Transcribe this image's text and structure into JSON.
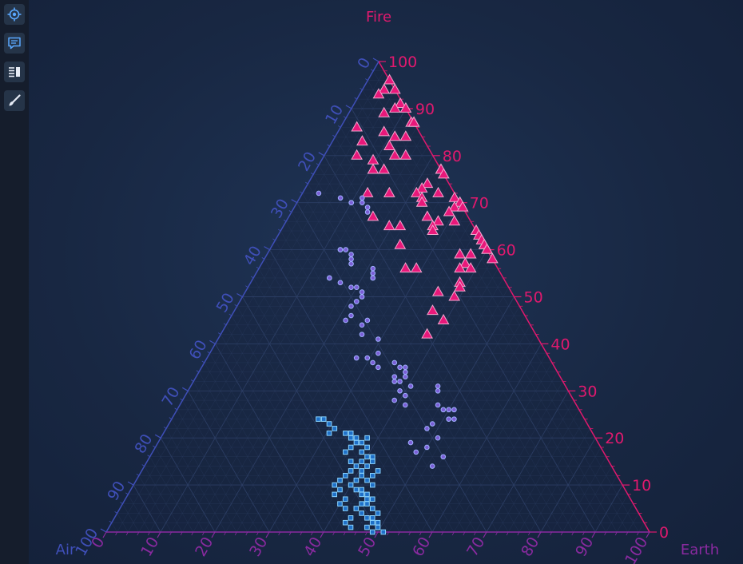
{
  "toolbar": {
    "items": [
      {
        "name": "zoom-extents",
        "icon": "target-icon"
      },
      {
        "name": "tooltip",
        "icon": "comment-icon"
      },
      {
        "name": "legend",
        "icon": "legend-icon"
      },
      {
        "name": "theme",
        "icon": "brush-icon"
      }
    ]
  },
  "colors": {
    "fire": "#e0196e",
    "air": "#3f4fb8",
    "earth": "#8a2aa0",
    "triangle_fill": "#e8187a",
    "triangle_stroke": "#f4a7d0",
    "circle_fill": "#7b5fd6",
    "circle_stroke": "#9fb0ff",
    "square_fill": "#1f70c8",
    "square_stroke": "#8ad4ff",
    "grid": "#2e3f66"
  },
  "chart_data": {
    "type": "scatter",
    "subtype": "ternary",
    "axes": {
      "fire": {
        "title": "Fire",
        "ticks": [
          "0",
          "10",
          "20",
          "30",
          "40",
          "50",
          "60",
          "70",
          "80",
          "90",
          "100"
        ],
        "range": [
          0,
          100
        ]
      },
      "air": {
        "title": "Air",
        "ticks": [
          "0",
          "10",
          "20",
          "30",
          "40",
          "50",
          "60",
          "70",
          "80",
          "90",
          "100"
        ],
        "range": [
          0,
          100
        ]
      },
      "earth": {
        "title": "Earth",
        "ticks": [
          "0",
          "10",
          "20",
          "30",
          "40",
          "50",
          "60",
          "70",
          "80",
          "90",
          "100"
        ],
        "range": [
          0,
          100
        ]
      }
    },
    "grid": true,
    "series": [
      {
        "marker": "triangle",
        "points": [
          {
            "fire": 96,
            "earth": 2
          },
          {
            "fire": 94,
            "earth": 1
          },
          {
            "fire": 94,
            "earth": 3
          },
          {
            "fire": 93,
            "earth": 0
          },
          {
            "fire": 91,
            "earth": 4
          },
          {
            "fire": 90,
            "earth": 6
          },
          {
            "fire": 90,
            "earth": 3
          },
          {
            "fire": 89,
            "earth": 1
          },
          {
            "fire": 87,
            "earth": 6
          },
          {
            "fire": 87,
            "earth": 7
          },
          {
            "fire": 87,
            "earth": 8
          },
          {
            "fire": 86,
            "earth": -4
          },
          {
            "fire": 85,
            "earth": 1
          },
          {
            "fire": 84,
            "earth": 3
          },
          {
            "fire": 84,
            "earth": 5
          },
          {
            "fire": 83,
            "earth": -3
          },
          {
            "fire": 82,
            "earth": 2
          },
          {
            "fire": 80,
            "earth": 5
          },
          {
            "fire": 80,
            "earth": 3
          },
          {
            "fire": 80,
            "earth": -4
          },
          {
            "fire": 79,
            "earth": -1
          },
          {
            "fire": 77,
            "earth": 1
          },
          {
            "fire": 77,
            "earth": -1
          },
          {
            "fire": 77,
            "earth": 13
          },
          {
            "fire": 77,
            "earth": 12
          },
          {
            "fire": 76,
            "earth": 15
          },
          {
            "fire": 74,
            "earth": 9
          },
          {
            "fire": 73,
            "earth": 8
          },
          {
            "fire": 72,
            "earth": 7
          },
          {
            "fire": 72,
            "earth": 11
          },
          {
            "fire": 72,
            "earth": 2
          },
          {
            "fire": 72,
            "earth": -2
          },
          {
            "fire": 71,
            "earth": 8
          },
          {
            "fire": 71,
            "earth": 14
          },
          {
            "fire": 70,
            "earth": 15
          },
          {
            "fire": 70,
            "earth": 8
          },
          {
            "fire": 69,
            "earth": 14
          },
          {
            "fire": 69,
            "earth": 20
          },
          {
            "fire": 68,
            "earth": 13
          },
          {
            "fire": 67,
            "earth": -1
          },
          {
            "fire": 67,
            "earth": 9
          },
          {
            "fire": 66,
            "earth": 11
          },
          {
            "fire": 66,
            "earth": 14
          },
          {
            "fire": 65,
            "earth": 10
          },
          {
            "fire": 65,
            "earth": 4
          },
          {
            "fire": 65,
            "earth": 2
          },
          {
            "fire": 64,
            "earth": 10
          },
          {
            "fire": 64,
            "earth": 18
          },
          {
            "fire": 64,
            "earth": 19
          },
          {
            "fire": 63,
            "earth": 25
          },
          {
            "fire": 62,
            "earth": 22
          },
          {
            "fire": 61,
            "earth": 25
          },
          {
            "fire": 61,
            "earth": 24
          },
          {
            "fire": 61,
            "earth": 4
          },
          {
            "fire": 60,
            "earth": 20
          },
          {
            "fire": 60,
            "earth": 23
          },
          {
            "fire": 59,
            "earth": 15
          },
          {
            "fire": 59,
            "earth": 17
          },
          {
            "fire": 58,
            "earth": 21
          },
          {
            "fire": 57,
            "earth": 16
          },
          {
            "fire": 57,
            "earth": 16
          },
          {
            "fire": 56,
            "earth": 15
          },
          {
            "fire": 56,
            "earth": 17
          },
          {
            "fire": 56,
            "earth": 5
          },
          {
            "fire": 56,
            "earth": 7
          },
          {
            "fire": 53,
            "earth": 15
          },
          {
            "fire": 52,
            "earth": 15
          },
          {
            "fire": 51,
            "earth": 11
          },
          {
            "fire": 50,
            "earth": 14
          },
          {
            "fire": 47,
            "earth": 10
          },
          {
            "fire": 45,
            "earth": 12
          },
          {
            "fire": 42,
            "earth": 9
          }
        ]
      },
      {
        "marker": "circle",
        "points": [
          {
            "fire": 72,
            "earth": -11
          },
          {
            "fire": 71,
            "earth": -7
          },
          {
            "fire": 71,
            "earth": -3
          },
          {
            "fire": 70,
            "earth": -5
          },
          {
            "fire": 70,
            "earth": -5
          },
          {
            "fire": 70,
            "earth": -3
          },
          {
            "fire": 69,
            "earth": -2
          },
          {
            "fire": 68,
            "earth": -2
          },
          {
            "fire": 60,
            "earth": -7
          },
          {
            "fire": 60,
            "earth": -7
          },
          {
            "fire": 60,
            "earth": -6
          },
          {
            "fire": 59,
            "earth": -5
          },
          {
            "fire": 58,
            "earth": -5
          },
          {
            "fire": 57,
            "earth": -5
          },
          {
            "fire": 56,
            "earth": -1
          },
          {
            "fire": 55,
            "earth": -1
          },
          {
            "fire": 54,
            "earth": -1
          },
          {
            "fire": 54,
            "earth": -9
          },
          {
            "fire": 54,
            "earth": -9
          },
          {
            "fire": 54,
            "earth": -1
          },
          {
            "fire": 53,
            "earth": -7
          },
          {
            "fire": 52,
            "earth": -5
          },
          {
            "fire": 52,
            "earth": -4
          },
          {
            "fire": 51,
            "earth": -3
          },
          {
            "fire": 50,
            "earth": -3
          },
          {
            "fire": 49,
            "earth": -4
          },
          {
            "fire": 48,
            "earth": -5
          },
          {
            "fire": 46,
            "earth": -5
          },
          {
            "fire": 45,
            "earth": -2
          },
          {
            "fire": 45,
            "earth": -6
          },
          {
            "fire": 44,
            "earth": -3
          },
          {
            "fire": 42,
            "earth": -3
          },
          {
            "fire": 41,
            "earth": 0
          },
          {
            "fire": 38,
            "earth": 0
          },
          {
            "fire": 37,
            "earth": -4
          },
          {
            "fire": 37,
            "earth": -2
          },
          {
            "fire": 36,
            "earth": -1
          },
          {
            "fire": 36,
            "earth": 3
          },
          {
            "fire": 35,
            "earth": 5
          },
          {
            "fire": 35,
            "earth": 4
          },
          {
            "fire": 35,
            "earth": 0
          },
          {
            "fire": 34,
            "earth": 5
          },
          {
            "fire": 33,
            "earth": 3
          },
          {
            "fire": 33,
            "earth": 5
          },
          {
            "fire": 32,
            "earth": 4
          },
          {
            "fire": 32,
            "earth": 3
          },
          {
            "fire": 31,
            "earth": 6
          },
          {
            "fire": 31,
            "earth": 11
          },
          {
            "fire": 30,
            "earth": 11
          },
          {
            "fire": 30,
            "earth": 4
          },
          {
            "fire": 29,
            "earth": 5
          },
          {
            "fire": 28,
            "earth": 3
          },
          {
            "fire": 27,
            "earth": 5
          },
          {
            "fire": 27,
            "earth": 11
          },
          {
            "fire": 26,
            "earth": 12
          },
          {
            "fire": 26,
            "earth": 13
          },
          {
            "fire": 26,
            "earth": 14
          },
          {
            "fire": 24,
            "earth": 14
          },
          {
            "fire": 24,
            "earth": 13
          },
          {
            "fire": 23,
            "earth": 10
          },
          {
            "fire": 22,
            "earth": 9
          },
          {
            "fire": 20,
            "earth": 11
          },
          {
            "fire": 19,
            "earth": 6
          },
          {
            "fire": 18,
            "earth": 9
          },
          {
            "fire": 17,
            "earth": 7
          },
          {
            "fire": 16,
            "earth": 12
          },
          {
            "fire": 14,
            "earth": 10
          }
        ]
      },
      {
        "marker": "square",
        "points": [
          {
            "fire": 24,
            "earth": -11
          },
          {
            "fire": 24,
            "earth": -10
          },
          {
            "fire": 23,
            "earth": -9
          },
          {
            "fire": 22,
            "earth": -8
          },
          {
            "fire": 21,
            "earth": -6
          },
          {
            "fire": 21,
            "earth": -5
          },
          {
            "fire": 21,
            "earth": -9
          },
          {
            "fire": 20,
            "earth": -5
          },
          {
            "fire": 20,
            "earth": -4
          },
          {
            "fire": 20,
            "earth": -2
          },
          {
            "fire": 19,
            "earth": -4
          },
          {
            "fire": 19,
            "earth": -3
          },
          {
            "fire": 18,
            "earth": -5
          },
          {
            "fire": 18,
            "earth": -2
          },
          {
            "fire": 17,
            "earth": -6
          },
          {
            "fire": 17,
            "earth": -3
          },
          {
            "fire": 16,
            "earth": -1
          },
          {
            "fire": 16,
            "earth": -2
          },
          {
            "fire": 15,
            "earth": -5
          },
          {
            "fire": 15,
            "earth": -3
          },
          {
            "fire": 15,
            "earth": -1
          },
          {
            "fire": 14,
            "earth": -2
          },
          {
            "fire": 14,
            "earth": -4
          },
          {
            "fire": 13,
            "earth": -5
          },
          {
            "fire": 13,
            "earth": -3
          },
          {
            "fire": 13,
            "earth": 0
          },
          {
            "fire": 12,
            "earth": -1
          },
          {
            "fire": 12,
            "earth": -3
          },
          {
            "fire": 11,
            "earth": -4
          },
          {
            "fire": 11,
            "earth": -2
          },
          {
            "fire": 10,
            "earth": -1
          },
          {
            "fire": 10,
            "earth": -5
          },
          {
            "fire": 9,
            "earth": -3
          },
          {
            "fire": 9,
            "earth": -4
          },
          {
            "fire": 8,
            "earth": -2
          },
          {
            "fire": 8,
            "earth": -3
          },
          {
            "fire": 7,
            "earth": -1
          },
          {
            "fire": 7,
            "earth": -2
          },
          {
            "fire": 6,
            "earth": -3
          },
          {
            "fire": 6,
            "earth": -2
          },
          {
            "fire": 5,
            "earth": -1
          },
          {
            "fire": 5,
            "earth": -4
          },
          {
            "fire": 4,
            "earth": -3
          },
          {
            "fire": 4,
            "earth": 0
          },
          {
            "fire": 3,
            "earth": -1
          },
          {
            "fire": 3,
            "earth": -2
          },
          {
            "fire": 2,
            "earth": -1
          },
          {
            "fire": 2,
            "earth": 0
          },
          {
            "fire": 1,
            "earth": 0
          },
          {
            "fire": 1,
            "earth": -2
          },
          {
            "fire": 0,
            "earth": -1
          },
          {
            "fire": 0,
            "earth": 1
          },
          {
            "fire": 11,
            "earth": -7
          },
          {
            "fire": 12,
            "earth": -6
          },
          {
            "fire": 9,
            "earth": -7
          },
          {
            "fire": 7,
            "earth": -6
          },
          {
            "fire": 5,
            "earth": -6
          },
          {
            "fire": 3,
            "earth": -5
          },
          {
            "fire": 2,
            "earth": -6
          },
          {
            "fire": 1,
            "earth": -5
          },
          {
            "fire": 6,
            "earth": -7
          },
          {
            "fire": 8,
            "earth": -8
          },
          {
            "fire": 10,
            "earth": -8
          }
        ]
      }
    ]
  }
}
